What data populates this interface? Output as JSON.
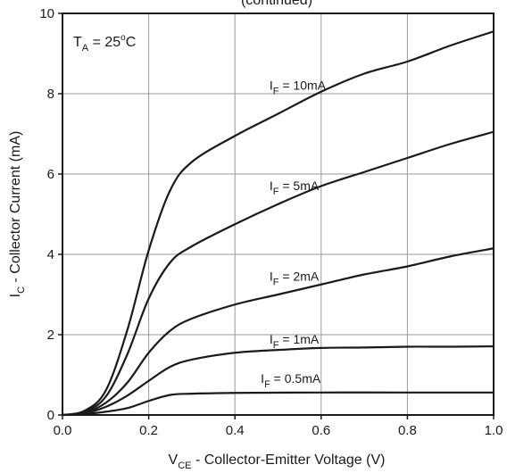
{
  "chart_data": {
    "type": "line",
    "title_fragment": "(continued)",
    "annotation": {
      "main": "T",
      "sub": "A",
      "rest": " = 25",
      "sup": "o",
      "tail": "C"
    },
    "xlabel": {
      "main": "V",
      "sub": "CE",
      "rest": " - Collector-Emitter Voltage (V)"
    },
    "ylabel": {
      "main": "I",
      "sub": "C",
      "rest": " - Collector Current (mA)"
    },
    "xlim": [
      0,
      1.0
    ],
    "ylim": [
      0,
      10
    ],
    "x_ticks": [
      "0.0",
      "0.2",
      "0.4",
      "0.6",
      "0.8",
      "1.0"
    ],
    "y_ticks": [
      "0",
      "2",
      "4",
      "6",
      "8",
      "10"
    ],
    "grid": true,
    "line_color": "#1a1a1a",
    "grid_color": "#9a9a9a",
    "series": [
      {
        "name": "I_F = 10mA",
        "label": {
          "main": "I",
          "sub": "F",
          "rest": " = 10mA"
        },
        "label_at": [
          0.48,
          8.1
        ],
        "points": [
          [
            0,
            0
          ],
          [
            0.05,
            0.1
          ],
          [
            0.1,
            0.6
          ],
          [
            0.15,
            2.1
          ],
          [
            0.2,
            4.1
          ],
          [
            0.25,
            5.6
          ],
          [
            0.3,
            6.3
          ],
          [
            0.4,
            6.95
          ],
          [
            0.5,
            7.5
          ],
          [
            0.6,
            8.05
          ],
          [
            0.7,
            8.5
          ],
          [
            0.8,
            8.8
          ],
          [
            0.9,
            9.2
          ],
          [
            1.0,
            9.55
          ]
        ]
      },
      {
        "name": "I_F = 5mA",
        "label": {
          "main": "I",
          "sub": "F",
          "rest": " = 5mA"
        },
        "label_at": [
          0.48,
          5.6
        ],
        "points": [
          [
            0,
            0
          ],
          [
            0.05,
            0.08
          ],
          [
            0.1,
            0.45
          ],
          [
            0.15,
            1.5
          ],
          [
            0.2,
            2.9
          ],
          [
            0.25,
            3.8
          ],
          [
            0.3,
            4.2
          ],
          [
            0.4,
            4.75
          ],
          [
            0.5,
            5.25
          ],
          [
            0.6,
            5.7
          ],
          [
            0.7,
            6.05
          ],
          [
            0.8,
            6.4
          ],
          [
            0.9,
            6.75
          ],
          [
            1.0,
            7.05
          ]
        ]
      },
      {
        "name": "I_F = 2mA",
        "label": {
          "main": "I",
          "sub": "F",
          "rest": " = 2mA"
        },
        "label_at": [
          0.48,
          3.35
        ],
        "points": [
          [
            0,
            0
          ],
          [
            0.05,
            0.05
          ],
          [
            0.1,
            0.3
          ],
          [
            0.15,
            0.8
          ],
          [
            0.2,
            1.55
          ],
          [
            0.25,
            2.1
          ],
          [
            0.3,
            2.4
          ],
          [
            0.4,
            2.75
          ],
          [
            0.5,
            3.0
          ],
          [
            0.6,
            3.25
          ],
          [
            0.7,
            3.5
          ],
          [
            0.8,
            3.7
          ],
          [
            0.9,
            3.95
          ],
          [
            1.0,
            4.15
          ]
        ]
      },
      {
        "name": "I_F = 1mA",
        "label": {
          "main": "I",
          "sub": "F",
          "rest": " = 1mA"
        },
        "label_at": [
          0.48,
          1.78
        ],
        "points": [
          [
            0,
            0
          ],
          [
            0.05,
            0.04
          ],
          [
            0.1,
            0.2
          ],
          [
            0.15,
            0.48
          ],
          [
            0.2,
            0.85
          ],
          [
            0.25,
            1.2
          ],
          [
            0.3,
            1.38
          ],
          [
            0.4,
            1.55
          ],
          [
            0.5,
            1.62
          ],
          [
            0.6,
            1.67
          ],
          [
            0.7,
            1.68
          ],
          [
            0.8,
            1.7
          ],
          [
            0.9,
            1.7
          ],
          [
            1.0,
            1.71
          ]
        ]
      },
      {
        "name": "I_F = 0.5mA",
        "label": {
          "main": "I",
          "sub": "F",
          "rest": " = 0.5mA"
        },
        "label_at": [
          0.46,
          0.8
        ],
        "points": [
          [
            0,
            0
          ],
          [
            0.05,
            0.02
          ],
          [
            0.1,
            0.08
          ],
          [
            0.15,
            0.17
          ],
          [
            0.2,
            0.35
          ],
          [
            0.25,
            0.5
          ],
          [
            0.3,
            0.53
          ],
          [
            0.4,
            0.55
          ],
          [
            0.6,
            0.56
          ],
          [
            0.8,
            0.56
          ],
          [
            1.0,
            0.56
          ]
        ]
      }
    ]
  }
}
